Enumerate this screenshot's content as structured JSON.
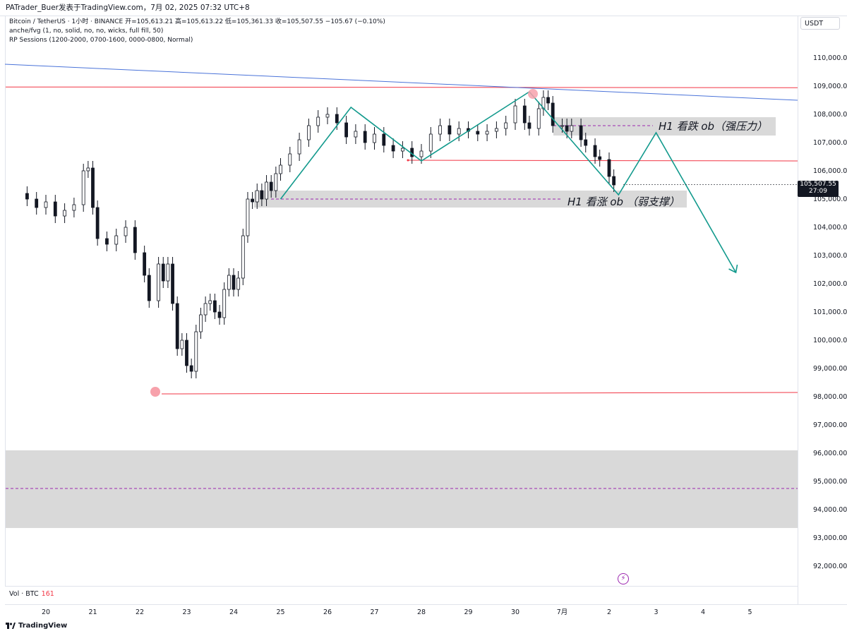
{
  "header": {
    "publisher": "PATrader_Buer发表于TradingView.com，7月 02, 2025 07:32 UTC+8"
  },
  "legend": {
    "symbol_line": "Bitcoin / TetherUS · 1小时 · BINANCE  开=105,613.21  高=105,613.22  低=105,361.33  收=105,507.55  −105.67 (−0.10%)",
    "indicator_1": "anche/fvg (1, no, solid, no, no, wicks, full fill, 50)",
    "indicator_2": "RP Sessions (1200-2000, 0700-1600, 0000-0800, Normal)"
  },
  "currency": "USDT",
  "volume": {
    "label": "Vol · BTC",
    "value": "161"
  },
  "brand": "TradingView",
  "price_tag": {
    "price": "105,507.55",
    "countdown": "27:09"
  },
  "chart_data": {
    "type": "line",
    "title": "",
    "xlabel": "",
    "ylabel": "",
    "ylim": [
      91500,
      111500
    ],
    "y_ticks": [
      "92,000.00",
      "93,000.00",
      "94,000.00",
      "95,000.00",
      "96,000.00",
      "97,000.00",
      "98,000.00",
      "99,000.00",
      "100,000.00",
      "101,000.00",
      "102,000.00",
      "103,000.00",
      "104,000.00",
      "105,000.00",
      "106,000.00",
      "107,000.00",
      "108,000.00",
      "109,000.00",
      "110,000.00"
    ],
    "x_ticks": [
      "20",
      "21",
      "22",
      "23",
      "24",
      "25",
      "26",
      "27",
      "28",
      "29",
      "30",
      "7月",
      "2",
      "3",
      "4",
      "5"
    ],
    "grid": false,
    "series": [
      {
        "points": [
          [
            19.6,
            105000
          ],
          [
            19.8,
            104700
          ],
          [
            20.0,
            104900
          ],
          [
            20.2,
            104400
          ],
          [
            20.4,
            104600
          ],
          [
            20.6,
            104800
          ],
          [
            20.8,
            106000
          ],
          [
            20.9,
            106100
          ],
          [
            21.0,
            104700
          ],
          [
            21.1,
            103600
          ],
          [
            21.3,
            103400
          ],
          [
            21.5,
            103700
          ],
          [
            21.7,
            104000
          ],
          [
            21.9,
            103100
          ],
          [
            22.1,
            102300
          ],
          [
            22.2,
            101400
          ],
          [
            22.4,
            102700
          ],
          [
            22.5,
            102100
          ],
          [
            22.6,
            102700
          ],
          [
            22.7,
            101300
          ],
          [
            22.8,
            99700
          ],
          [
            22.9,
            100000
          ],
          [
            23.0,
            99100
          ],
          [
            23.1,
            98900
          ],
          [
            23.2,
            100300
          ],
          [
            23.3,
            100900
          ],
          [
            23.4,
            101300
          ],
          [
            23.5,
            101400
          ],
          [
            23.6,
            101000
          ],
          [
            23.7,
            100800
          ],
          [
            23.8,
            101800
          ],
          [
            23.9,
            102300
          ],
          [
            24.0,
            101800
          ],
          [
            24.1,
            102200
          ],
          [
            24.2,
            103700
          ],
          [
            24.3,
            105000
          ],
          [
            24.4,
            104900
          ],
          [
            24.5,
            105300
          ],
          [
            24.6,
            105000
          ],
          [
            24.7,
            105600
          ],
          [
            24.8,
            105300
          ],
          [
            24.9,
            105900
          ],
          [
            25.0,
            106200
          ],
          [
            25.2,
            106600
          ],
          [
            25.4,
            107100
          ],
          [
            25.6,
            107600
          ],
          [
            25.8,
            107900
          ],
          [
            26.0,
            108000
          ],
          [
            26.2,
            107700
          ],
          [
            26.4,
            107200
          ],
          [
            26.6,
            107400
          ],
          [
            26.8,
            107000
          ],
          [
            27.0,
            107300
          ],
          [
            27.2,
            106900
          ],
          [
            27.4,
            106700
          ],
          [
            27.6,
            106800
          ],
          [
            27.8,
            106500
          ],
          [
            28.0,
            106700
          ],
          [
            28.2,
            107300
          ],
          [
            28.4,
            107600
          ],
          [
            28.6,
            107300
          ],
          [
            28.8,
            107500
          ],
          [
            29.0,
            107400
          ],
          [
            29.2,
            107300
          ],
          [
            29.4,
            107400
          ],
          [
            29.6,
            107500
          ],
          [
            29.8,
            107700
          ],
          [
            30.0,
            108300
          ],
          [
            30.2,
            107700
          ],
          [
            30.3,
            107500
          ],
          [
            30.5,
            108200
          ],
          [
            30.6,
            108600
          ],
          [
            30.7,
            108400
          ],
          [
            30.8,
            107600
          ],
          [
            31.0,
            107600
          ],
          [
            31.1,
            107400
          ],
          [
            31.2,
            107600
          ],
          [
            31.4,
            107100
          ],
          [
            31.5,
            106900
          ],
          [
            31.7,
            106500
          ],
          [
            31.8,
            106400
          ],
          [
            32.0,
            105800
          ],
          [
            32.1,
            105500
          ]
        ]
      }
    ],
    "annotations": {
      "bearish_ob": {
        "label": "H1 看跌 ob（强压力）",
        "range": [
          107250,
          107900
        ],
        "mid": 107600
      },
      "bullish_ob": {
        "label": "H1 看涨 ob （弱支撑）",
        "range": [
          104700,
          105300
        ],
        "mid": 105000
      },
      "lower_zone": {
        "range": [
          93350,
          96100
        ],
        "mid": 94750
      },
      "resistance_line": 108970,
      "low_line": 98150,
      "mid_line": 106350,
      "trendline_from": [
        19.4,
        110800
      ],
      "trendline_to": [
        35.5,
        108500
      ],
      "pattern_zigzag": [
        [
          25.0,
          105000
        ],
        [
          26.5,
          108250
        ],
        [
          28.0,
          106350
        ],
        [
          30.3,
          108800
        ],
        [
          32.2,
          105150
        ],
        [
          33.0,
          107350
        ],
        [
          34.7,
          102400
        ]
      ]
    }
  },
  "colors": {
    "up": "#131722",
    "down": "#131722",
    "red_line": "#f23645",
    "trend_blue": "#4a73d9",
    "zigzag": "#139a8d",
    "zone": "#d9d9d9",
    "mid_dash": "#9c27b0",
    "marker": "#f7a1ab"
  }
}
